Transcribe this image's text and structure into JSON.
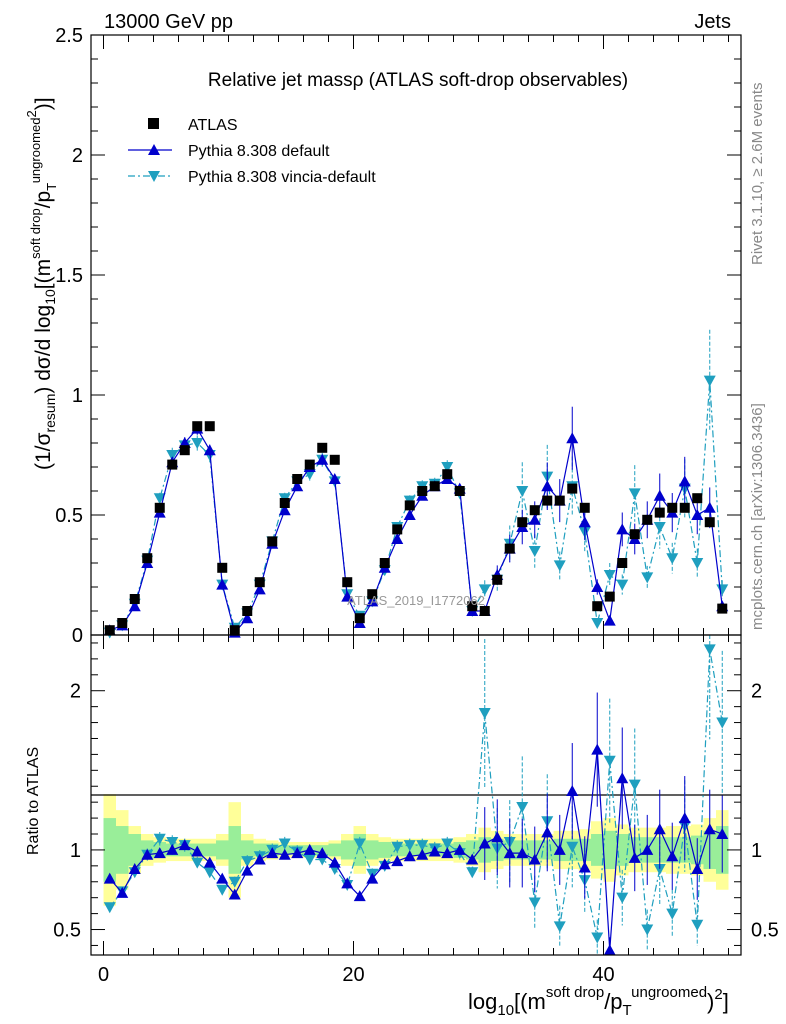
{
  "header": {
    "left": "13000 GeV pp",
    "right": "Jets"
  },
  "side_labels": {
    "upper": "Rivet 3.1.10, ≥ 2.6M events",
    "lower": "mcplots.cern.ch [arXiv:1306.3436]"
  },
  "watermark": "ATLAS_2019_I1772062",
  "chart_data": [
    {
      "type": "scatter",
      "panel": "main",
      "title": "Relative jet massρ (ATLAS soft-drop observables)",
      "ylabel": "(1/σresum) dσ/d log10[(m^soft drop/p_T^ungroomed)^2]",
      "xlim": [
        -1,
        51
      ],
      "ylim": [
        0,
        2.5
      ],
      "xticks": [
        0,
        20,
        40
      ],
      "yticks": [
        0,
        0.5,
        1,
        1.5,
        2,
        2.5
      ],
      "ytick_labels": [
        "0",
        "0.5",
        "1",
        "1.5",
        "2",
        "2.5"
      ],
      "legend_position": "top-left",
      "x": [
        0.5,
        1.5,
        2.5,
        3.5,
        4.5,
        5.5,
        6.5,
        7.5,
        8.5,
        9.5,
        10.5,
        11.5,
        12.5,
        13.5,
        14.5,
        15.5,
        16.5,
        17.5,
        18.5,
        19.5,
        20.5,
        21.5,
        22.5,
        23.5,
        24.5,
        25.5,
        26.5,
        27.5,
        28.5,
        29.5,
        30.5,
        31.5,
        32.5,
        33.5,
        34.5,
        35.5,
        36.5,
        37.5,
        38.5,
        39.5,
        40.5,
        41.5,
        42.5,
        43.5,
        44.5,
        45.5,
        46.5,
        47.5,
        48.5,
        49.5
      ],
      "series": [
        {
          "name": "ATLAS",
          "style": "data",
          "color": "#000000",
          "values": [
            0.02,
            0.05,
            0.15,
            0.32,
            0.53,
            0.71,
            0.77,
            0.87,
            0.87,
            0.28,
            0.02,
            0.1,
            0.22,
            0.39,
            0.55,
            0.65,
            0.71,
            0.78,
            0.73,
            0.22,
            0.07,
            0.17,
            0.3,
            0.44,
            0.54,
            0.6,
            0.62,
            0.67,
            0.6,
            0.12,
            0.1,
            0.23,
            0.36,
            0.47,
            0.52,
            0.56,
            0.56,
            0.61,
            0.53,
            0.12,
            0.16,
            0.3,
            0.42,
            0.48,
            0.51,
            0.53,
            0.53,
            0.57,
            0.47,
            0.11
          ]
        },
        {
          "name": "Pythia 8.308 default",
          "style": "solid",
          "color": "#0000cc",
          "values": [
            0.02,
            0.04,
            0.12,
            0.3,
            0.51,
            0.72,
            0.8,
            0.86,
            0.77,
            0.21,
            0.01,
            0.07,
            0.19,
            0.38,
            0.52,
            0.62,
            0.7,
            0.73,
            0.65,
            0.16,
            0.05,
            0.14,
            0.28,
            0.4,
            0.5,
            0.58,
            0.62,
            0.65,
            0.61,
            0.1,
            0.1,
            0.25,
            0.36,
            0.45,
            0.48,
            0.62,
            0.56,
            0.82,
            0.47,
            0.2,
            0.06,
            0.44,
            0.4,
            0.48,
            0.58,
            0.51,
            0.64,
            0.5,
            0.53,
            0.12
          ]
        },
        {
          "name": "Pythia 8.308 vincia-default",
          "style": "dashdot",
          "color": "#1f9fbf",
          "values": [
            0.01,
            0.04,
            0.13,
            0.31,
            0.57,
            0.75,
            0.79,
            0.8,
            0.75,
            0.21,
            0.03,
            0.09,
            0.21,
            0.39,
            0.57,
            0.64,
            0.67,
            0.73,
            0.64,
            0.17,
            0.08,
            0.14,
            0.27,
            0.45,
            0.56,
            0.62,
            0.63,
            0.7,
            0.59,
            0.1,
            0.19,
            0.23,
            0.38,
            0.6,
            0.35,
            0.66,
            0.29,
            0.62,
            0.43,
            0.05,
            0.25,
            0.21,
            0.59,
            0.24,
            0.45,
            0.32,
            0.61,
            0.3,
            1.06,
            0.19
          ]
        }
      ]
    },
    {
      "type": "scatter",
      "panel": "ratio",
      "ylabel": "Ratio to ATLAS",
      "xlabel": "log10[(m^soft drop/p_T^ungroomed)^2]",
      "xlim": [
        -1,
        51
      ],
      "ylim": [
        0.34,
        2.35
      ],
      "xticks": [
        0,
        20,
        40
      ],
      "xtick_labels": [
        "0",
        "20",
        "40"
      ],
      "yticks": [
        0.5,
        1,
        2
      ],
      "ytick_labels": [
        "0.5",
        "1",
        "2"
      ],
      "band_inner_halfwidth": [
        0.2,
        0.15,
        0.1,
        0.06,
        0.05,
        0.04,
        0.04,
        0.04,
        0.04,
        0.06,
        0.15,
        0.06,
        0.04,
        0.04,
        0.03,
        0.03,
        0.03,
        0.03,
        0.04,
        0.06,
        0.1,
        0.06,
        0.05,
        0.04,
        0.04,
        0.04,
        0.04,
        0.04,
        0.05,
        0.06,
        0.08,
        0.07,
        0.06,
        0.06,
        0.06,
        0.06,
        0.07,
        0.07,
        0.07,
        0.1,
        0.12,
        0.1,
        0.08,
        0.08,
        0.08,
        0.08,
        0.08,
        0.09,
        0.12,
        0.15
      ],
      "band_outer_halfwidth": [
        0.35,
        0.25,
        0.15,
        0.1,
        0.08,
        0.07,
        0.07,
        0.07,
        0.07,
        0.1,
        0.3,
        0.1,
        0.07,
        0.06,
        0.05,
        0.05,
        0.05,
        0.05,
        0.06,
        0.1,
        0.15,
        0.1,
        0.08,
        0.07,
        0.07,
        0.07,
        0.07,
        0.07,
        0.08,
        0.1,
        0.14,
        0.12,
        0.1,
        0.1,
        0.1,
        0.1,
        0.12,
        0.12,
        0.13,
        0.18,
        0.2,
        0.16,
        0.14,
        0.14,
        0.14,
        0.15,
        0.15,
        0.16,
        0.2,
        0.25
      ],
      "series": [
        {
          "name": "Pythia 8.308 default",
          "color": "#0000cc",
          "values": [
            0.82,
            0.73,
            0.88,
            0.97,
            0.98,
            1.0,
            1.03,
            0.99,
            0.92,
            0.82,
            0.72,
            0.87,
            0.94,
            0.98,
            0.97,
            0.98,
            1.0,
            0.98,
            0.92,
            0.79,
            0.71,
            0.82,
            0.91,
            0.93,
            0.96,
            0.97,
            0.99,
            0.98,
            1.0,
            0.94,
            1.04,
            1.08,
            0.98,
            0.98,
            0.94,
            1.11,
            1.0,
            1.37,
            0.89,
            1.63,
            0.37,
            1.45,
            0.95,
            1.0,
            1.13,
            0.96,
            1.2,
            0.88,
            1.13,
            1.1
          ]
        },
        {
          "name": "Pythia 8.308 vincia-default",
          "color": "#1f9fbf",
          "values": [
            0.64,
            0.74,
            0.86,
            0.97,
            1.07,
            1.05,
            1.03,
            0.92,
            0.86,
            0.75,
            0.8,
            0.93,
            0.96,
            1.0,
            1.04,
            0.99,
            0.94,
            0.94,
            0.88,
            0.78,
            1.04,
            0.85,
            0.9,
            1.02,
            1.03,
            1.03,
            1.01,
            1.04,
            0.98,
            0.86,
            1.86,
            1.01,
            1.05,
            1.27,
            0.67,
            1.18,
            0.52,
            1.02,
            0.81,
            0.45,
            1.56,
            0.7,
            1.41,
            0.5,
            0.88,
            0.6,
            1.15,
            0.53,
            2.26,
            1.8
          ]
        }
      ]
    }
  ]
}
